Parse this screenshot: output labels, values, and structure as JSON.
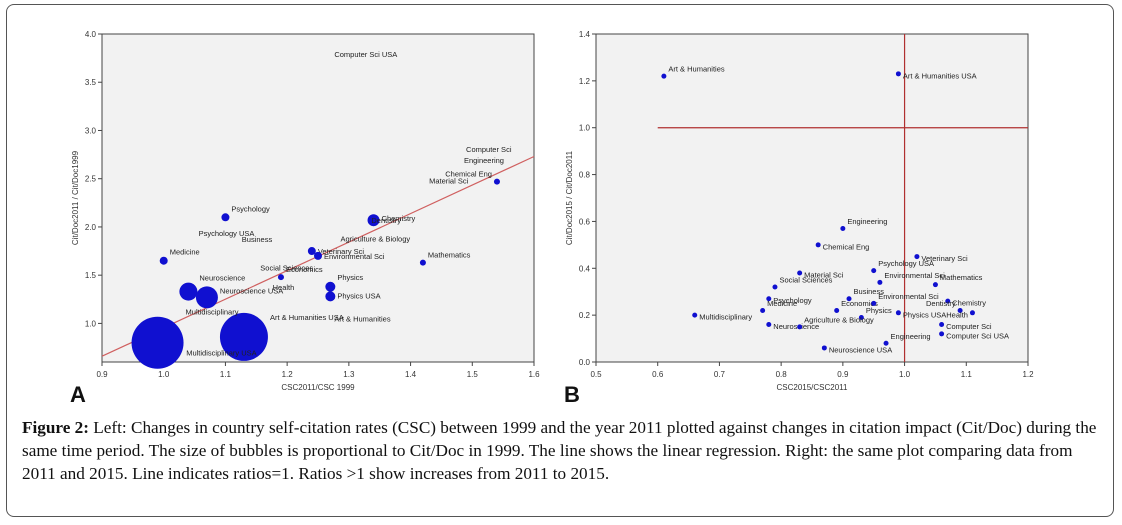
{
  "caption": {
    "label": "Figure 2:",
    "text": "Left: Changes in country self-citation rates (CSC) between 1999 and the year 2011 plotted against changes in citation impact (Cit/Doc) during the same time period. The size of bubbles is proportional to Cit/Doc in 1999. The line shows the linear regression. Right: the same plot comparing data from 2011 and 2015. Line indicates ratios=1. Ratios >1 show increases from 2011 to 2015."
  },
  "colors": {
    "marker": "#1010d0",
    "regression": "#d06060",
    "ratio_line": "#b03030",
    "background": "#f2f2f2"
  },
  "chart_data": [
    {
      "panel": "A",
      "type": "scatter",
      "xlabel": "CSC2011/CSC 1999",
      "ylabel": "Cit/Doc2011 / Cit/Doc1999",
      "xlim": [
        0.9,
        1.6
      ],
      "ylim": [
        0.6,
        4.0
      ],
      "xticks": [
        "0.9",
        "1.0",
        "1.1",
        "1.2",
        "1.3",
        "1.4",
        "1.5",
        "1.6"
      ],
      "yticks": [
        "1.0",
        "1.5",
        "2.0",
        "2.5",
        "3.0",
        "3.5",
        "4.0"
      ],
      "regression": {
        "x": [
          0.9,
          1.6
        ],
        "y": [
          0.66,
          2.73
        ]
      },
      "points": [
        {
          "label": "Computer Sci USA",
          "x": 1.27,
          "y": 3.72,
          "size": 0
        },
        {
          "label": "Computer Sci",
          "x": 1.57,
          "y": 2.83,
          "size": 0
        },
        {
          "label": "Engineering",
          "x": 1.48,
          "y": 2.62,
          "size": 0
        },
        {
          "label": "Material Sci",
          "x": 1.5,
          "y": 2.5,
          "size": 0
        },
        {
          "label": "Chemical Eng",
          "x": 1.54,
          "y": 2.47,
          "size": 3
        },
        {
          "label": "Chemistry",
          "x": 1.34,
          "y": 2.07,
          "size": 6
        },
        {
          "label": "Dentistry",
          "x": 1.33,
          "y": 2.0,
          "size": 0
        },
        {
          "label": "Psychology USA",
          "x": 1.05,
          "y": 1.96,
          "size": 0
        },
        {
          "label": "Psychology",
          "x": 1.1,
          "y": 2.1,
          "size": 4
        },
        {
          "label": "Agriculture & Biology",
          "x": 1.28,
          "y": 1.9,
          "size": 0
        },
        {
          "label": "Business",
          "x": 1.12,
          "y": 1.8,
          "size": 0
        },
        {
          "label": "Veterinary Sci",
          "x": 1.24,
          "y": 1.75,
          "size": 4
        },
        {
          "label": "Medicine",
          "x": 1.0,
          "y": 1.65,
          "size": 4
        },
        {
          "label": "Social Sciences",
          "x": 1.15,
          "y": 1.6,
          "size": 0
        },
        {
          "label": "Mathematics",
          "x": 1.42,
          "y": 1.63,
          "size": 3
        },
        {
          "label": "Environmental Sci",
          "x": 1.25,
          "y": 1.7,
          "size": 4
        },
        {
          "label": "Economics",
          "x": 1.19,
          "y": 1.48,
          "size": 3
        },
        {
          "label": "Health",
          "x": 1.17,
          "y": 1.4,
          "size": 0
        },
        {
          "label": "Physics",
          "x": 1.27,
          "y": 1.38,
          "size": 5
        },
        {
          "label": "Physics USA",
          "x": 1.27,
          "y": 1.28,
          "size": 5
        },
        {
          "label": "Neuroscience",
          "x": 1.04,
          "y": 1.33,
          "size": 9
        },
        {
          "label": "Neuroscience USA",
          "x": 1.07,
          "y": 1.27,
          "size": 11
        },
        {
          "label": "Art & Humanities",
          "x": 1.27,
          "y": 0.98,
          "size": 0
        },
        {
          "label": "Art & Humanities USA",
          "x": 1.13,
          "y": 0.86,
          "size": 24
        },
        {
          "label": "Multidisciplinary",
          "x": 0.99,
          "y": 0.8,
          "size": 26
        },
        {
          "label": "Multidisciplinary USA",
          "x": 1.03,
          "y": 0.72,
          "size": 0
        }
      ]
    },
    {
      "panel": "B",
      "type": "scatter",
      "xlabel": "CSC2015/CSC2011",
      "ylabel": "Cit/Doc2015 / Cit/Doc2011",
      "xlim": [
        0.5,
        1.2
      ],
      "ylim": [
        0.0,
        1.4
      ],
      "xticks": [
        "0.5",
        "0.6",
        "0.7",
        "0.8",
        "0.9",
        "1.0",
        "1.1",
        "1.2"
      ],
      "yticks": [
        "0.0",
        "0.2",
        "0.4",
        "0.6",
        "0.8",
        "1.0",
        "1.2",
        "1.4"
      ],
      "ratio_lines": {
        "x": 1.0,
        "y": 1.0
      },
      "points": [
        {
          "label": "Art & Humanities",
          "x": 0.61,
          "y": 1.22
        },
        {
          "label": "Art & Humanities USA",
          "x": 0.99,
          "y": 1.23
        },
        {
          "label": "Engineering",
          "x": 0.9,
          "y": 0.57
        },
        {
          "label": "Chemical Eng",
          "x": 0.86,
          "y": 0.5
        },
        {
          "label": "Social Sciences",
          "x": 0.79,
          "y": 0.32
        },
        {
          "label": "Material Sci",
          "x": 0.83,
          "y": 0.38
        },
        {
          "label": "Psychology USA",
          "x": 0.95,
          "y": 0.39
        },
        {
          "label": "Veterinary Sci",
          "x": 1.02,
          "y": 0.45
        },
        {
          "label": "Environmental Sci",
          "x": 0.96,
          "y": 0.34
        },
        {
          "label": "Psychology",
          "x": 0.78,
          "y": 0.27
        },
        {
          "label": "Business",
          "x": 0.91,
          "y": 0.27
        },
        {
          "label": "Multidisciplinary",
          "x": 0.66,
          "y": 0.2
        },
        {
          "label": "Medicine",
          "x": 0.77,
          "y": 0.22
        },
        {
          "label": "Neuroscience",
          "x": 0.78,
          "y": 0.16
        },
        {
          "label": "Economics",
          "x": 0.89,
          "y": 0.22
        },
        {
          "label": "Physics USA",
          "x": 0.99,
          "y": 0.21
        },
        {
          "label": "Mathematics",
          "x": 1.05,
          "y": 0.33
        },
        {
          "label": "Chemistry",
          "x": 1.07,
          "y": 0.26
        },
        {
          "label": "Dentistry",
          "x": 1.09,
          "y": 0.22
        },
        {
          "label": "Health",
          "x": 1.11,
          "y": 0.21
        },
        {
          "label": "Physics",
          "x": 0.93,
          "y": 0.19
        },
        {
          "label": "Computer Sci",
          "x": 1.06,
          "y": 0.16
        },
        {
          "label": "Agriculture & Biology",
          "x": 0.83,
          "y": 0.15
        },
        {
          "label": "Neuroscience USA",
          "x": 0.87,
          "y": 0.06
        },
        {
          "label": "Engineering",
          "x": 0.97,
          "y": 0.08
        },
        {
          "label": "Computer Sci USA",
          "x": 1.06,
          "y": 0.12
        },
        {
          "label": "Environmental Sci",
          "x": 0.95,
          "y": 0.25
        }
      ]
    }
  ],
  "panel_labels": {
    "a": "A",
    "b": "B"
  }
}
